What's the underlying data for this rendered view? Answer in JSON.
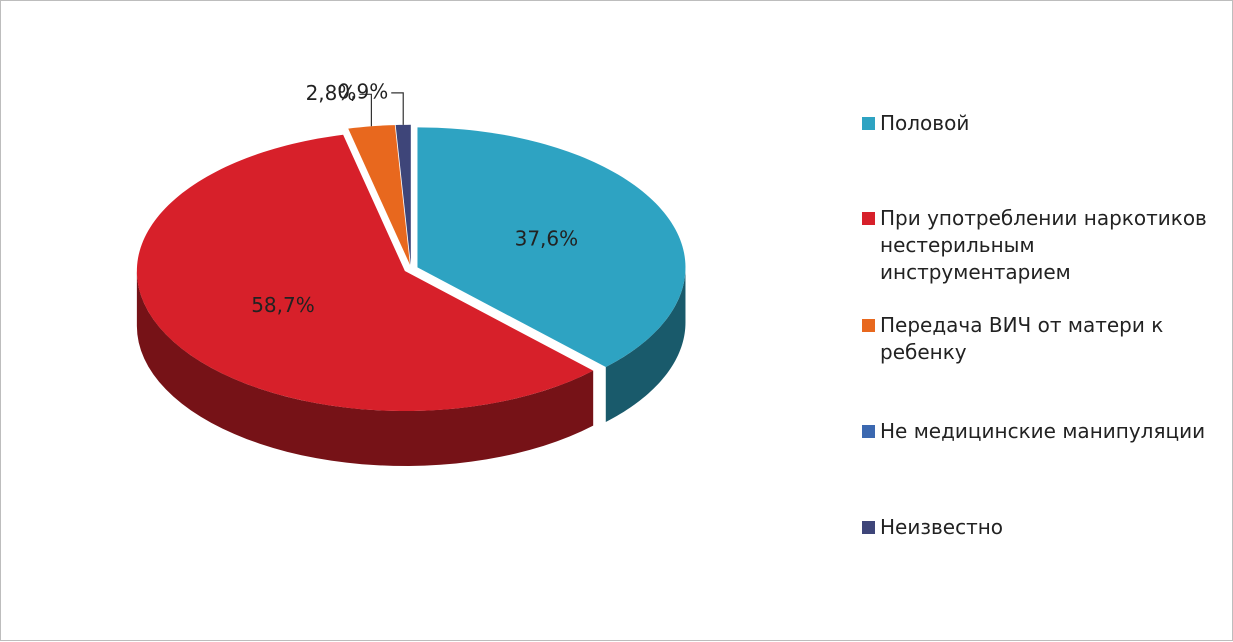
{
  "chart_data": {
    "type": "pie",
    "categories": [
      "Половой",
      "При употреблении наркотиков нестерильным инструментарием",
      "Передача ВИЧ от матери к ребенку",
      "Не медицинские манипуляции",
      "Неизвестно"
    ],
    "values": [
      37.6,
      58.7,
      2.8,
      0,
      0.9
    ],
    "value_labels": [
      "37,6%",
      "58,7%",
      "2,8%",
      null,
      "0,9%"
    ],
    "colors": [
      "#2ea3c2",
      "#d7202a",
      "#e8681e",
      "#3b68b0",
      "#3e4579"
    ],
    "legend": "right"
  }
}
